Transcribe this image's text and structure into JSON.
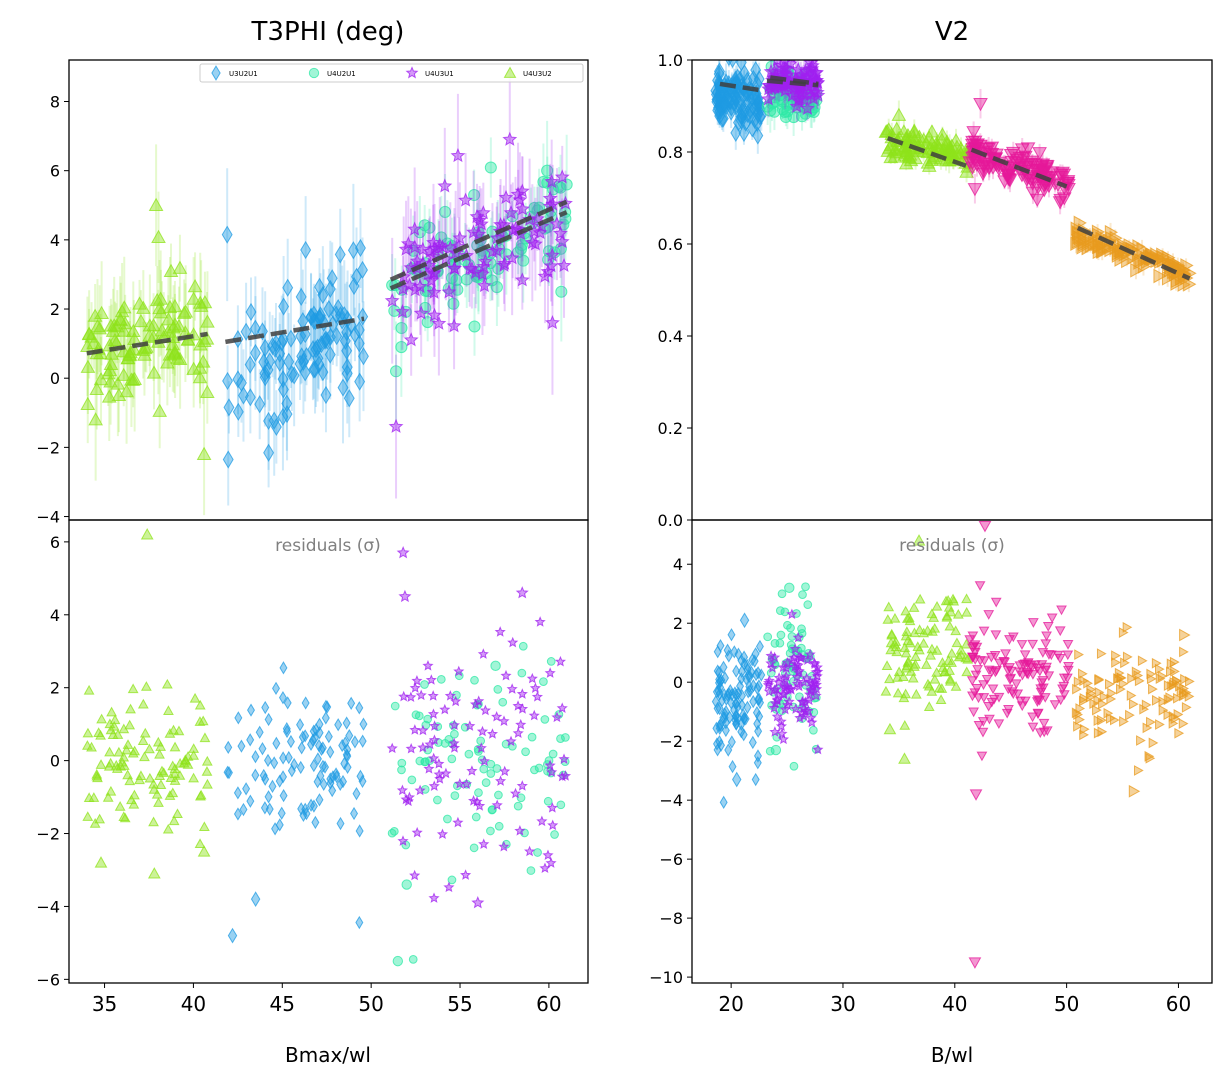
{
  "chart_data": [
    {
      "type": "scatter",
      "panel": "left",
      "title": "T3PHI (deg)",
      "xlabel": "Bmax/wl",
      "residuals_label": "residuals (σ)",
      "xlim": [
        33,
        62.2
      ],
      "xticks": [
        35,
        40,
        45,
        50,
        55,
        60
      ],
      "top": {
        "ylim": [
          -4.1,
          9.2
        ],
        "yticks": [
          -4,
          -2,
          0,
          2,
          4,
          6,
          8
        ]
      },
      "bottom": {
        "ylim": [
          -6.1,
          6.6
        ],
        "yticks": [
          -6,
          -4,
          -2,
          0,
          2,
          4,
          6
        ]
      },
      "legend": {
        "position": "top-right"
      },
      "series": [
        {
          "name": "U3U2U1",
          "marker": "diamond",
          "color": "#1f9be3",
          "x_range": [
            41.8,
            49.6
          ],
          "y_center_at_start": 0.1,
          "y_center_at_end": 1.7,
          "y_spread": 0.9,
          "errorbar": 1.2,
          "model": {
            "x": [
              41.8,
              49.6
            ],
            "y": [
              1.05,
              1.72
            ]
          },
          "residual_spread": 1.1,
          "n_points": 110,
          "highlights": [
            [
              41.9,
              4.15
            ],
            [
              49.0,
              3.7
            ]
          ],
          "residual_highlights": [
            [
              42.2,
              -4.8
            ],
            [
              43.5,
              -3.8
            ]
          ]
        },
        {
          "name": "U4U2U1",
          "marker": "circle",
          "color": "#2ee8a6",
          "x_range": [
            51.1,
            61.0
          ],
          "y_center_at_start": 2.6,
          "y_center_at_end": 4.8,
          "y_spread": 0.8,
          "errorbar": 0.9,
          "model": {
            "x": [
              51.1,
              61.0
            ],
            "y": [
              2.6,
              4.8
            ]
          },
          "residual_spread": 1.3,
          "n_points": 90,
          "highlights": [
            [
              51.4,
              0.2
            ],
            [
              51.7,
              0.9
            ],
            [
              60.7,
              2.5
            ],
            [
              61.0,
              5.6
            ],
            [
              59.9,
              6.0
            ]
          ],
          "residual_highlights": [
            [
              51.5,
              -5.5
            ],
            [
              52.0,
              -3.4
            ],
            [
              57.0,
              2.6
            ]
          ]
        },
        {
          "name": "U4U3U1",
          "marker": "star",
          "color": "#a020f0",
          "x_range": [
            51.1,
            61.0
          ],
          "y_center_at_start": 2.9,
          "y_center_at_end": 4.9,
          "y_spread": 1.0,
          "errorbar": 1.3,
          "model": {
            "x": [
              51.1,
              61.0
            ],
            "y": [
              2.85,
              5.1
            ]
          },
          "residual_spread": 1.5,
          "n_points": 100,
          "highlights": [
            [
              51.4,
              -1.4
            ],
            [
              60.2,
              1.6
            ],
            [
              57.8,
              6.9
            ]
          ],
          "residual_highlights": [
            [
              51.8,
              5.7
            ],
            [
              51.9,
              4.5
            ],
            [
              58.5,
              4.6
            ],
            [
              56.0,
              -3.9
            ]
          ]
        },
        {
          "name": "U4U3U2",
          "marker": "triangle-up",
          "color": "#8fe31b",
          "x_range": [
            34.0,
            40.8
          ],
          "y_center_at_start": 0.8,
          "y_center_at_end": 1.5,
          "y_spread": 0.9,
          "errorbar": 1.1,
          "model": {
            "x": [
              34.0,
              40.8
            ],
            "y": [
              0.72,
              1.28
            ]
          },
          "residual_spread": 1.0,
          "n_points": 110,
          "highlights": [
            [
              37.9,
              5.0
            ],
            [
              40.6,
              -2.2
            ],
            [
              34.5,
              -1.2
            ]
          ],
          "residual_highlights": [
            [
              37.4,
              6.2
            ],
            [
              34.8,
              -2.8
            ],
            [
              37.8,
              -3.1
            ],
            [
              40.6,
              -2.5
            ]
          ]
        }
      ]
    },
    {
      "type": "scatter",
      "panel": "right",
      "title": "V2",
      "xlabel": "B/wl",
      "residuals_label": "residuals (σ)",
      "xlim": [
        16.5,
        63
      ],
      "xticks": [
        20,
        30,
        40,
        50,
        60
      ],
      "top": {
        "ylim": [
          0.0,
          1.0
        ],
        "yticks": [
          0.0,
          0.2,
          0.4,
          0.6,
          0.8,
          1.0
        ]
      },
      "bottom": {
        "ylim": [
          -10.2,
          5.5
        ],
        "yticks": [
          -10,
          -8,
          -6,
          -4,
          -2,
          0,
          2,
          4
        ]
      },
      "series": [
        {
          "name": "blue-diamond",
          "marker": "diamond",
          "color": "#1f9be3",
          "x_range": [
            18.6,
            22.8
          ],
          "y_center_at_start": 0.925,
          "y_center_at_end": 0.905,
          "y_spread": 0.028,
          "errorbar": 0.03,
          "model": {
            "x": [
              19.0,
              23.0
            ],
            "y": [
              0.948,
              0.933
            ]
          },
          "residual_spread": 0.9,
          "residual_offset": -0.6,
          "n_points": 110,
          "highlights": [],
          "residual_highlights": [
            [
              20.5,
              -3.3
            ],
            [
              21.2,
              2.1
            ]
          ]
        },
        {
          "name": "green-circle",
          "marker": "circle",
          "color": "#2ee8a6",
          "x_range": [
            23.2,
            27.8
          ],
          "y_center_at_start": 0.93,
          "y_center_at_end": 0.92,
          "y_spread": 0.03,
          "errorbar": 0.03,
          "model": {
            "x": [
              23.2,
              27.8
            ],
            "y": [
              0.955,
              0.945
            ]
          },
          "residual_spread": 1.2,
          "residual_offset": 0.3,
          "n_points": 70,
          "highlights": [
            [
              23.5,
              0.89
            ]
          ],
          "residual_highlights": [
            [
              25.2,
              3.2
            ],
            [
              24.0,
              -2.3
            ]
          ]
        },
        {
          "name": "purple-star",
          "marker": "star",
          "color": "#a020f0",
          "x_range": [
            23.2,
            27.8
          ],
          "y_center_at_start": 0.96,
          "y_center_at_end": 0.945,
          "y_spread": 0.025,
          "errorbar": 0.03,
          "model": {
            "x": [
              23.5,
              27.8
            ],
            "y": [
              0.962,
              0.948
            ]
          },
          "residual_spread": 0.7,
          "residual_offset": -0.1,
          "n_points": 90,
          "highlights": [],
          "residual_highlights": []
        },
        {
          "name": "green-triangle-up",
          "marker": "triangle-up",
          "color": "#8fe31b",
          "x_range": [
            33.8,
            41.2
          ],
          "y_center_at_start": 0.82,
          "y_center_at_end": 0.79,
          "y_spread": 0.018,
          "errorbar": 0.02,
          "model": {
            "x": [
              34.0,
              41.0
            ],
            "y": [
              0.83,
              0.77
            ]
          },
          "residual_spread": 1.0,
          "residual_offset": 1.2,
          "n_points": 100,
          "highlights": [
            [
              35.0,
              0.88
            ]
          ],
          "residual_highlights": [
            [
              36.8,
              4.8
            ],
            [
              35.5,
              -2.6
            ],
            [
              34.2,
              -1.6
            ]
          ]
        },
        {
          "name": "magenta-triangle-down",
          "marker": "triangle-down",
          "color": "#e5189a",
          "x_range": [
            41.2,
            50.3
          ],
          "y_center_at_start": 0.8,
          "y_center_at_end": 0.73,
          "y_spread": 0.02,
          "errorbar": 0.02,
          "model": {
            "x": [
              41.5,
              50.0
            ],
            "y": [
              0.805,
              0.725
            ]
          },
          "residual_spread": 0.9,
          "residual_offset": 0.4,
          "n_points": 130,
          "highlights": [
            [
              41.8,
              0.72
            ],
            [
              42.3,
              0.905
            ]
          ],
          "residual_highlights": [
            [
              42.7,
              5.3
            ],
            [
              41.8,
              -9.5
            ],
            [
              41.9,
              -3.8
            ]
          ]
        },
        {
          "name": "orange-triangle-right",
          "marker": "triangle-right",
          "color": "#e89b1f",
          "x_range": [
            50.8,
            61.0
          ],
          "y_center_at_start": 0.62,
          "y_center_at_end": 0.535,
          "y_spread": 0.012,
          "errorbar": 0.015,
          "model": {
            "x": [
              51.0,
              61.0
            ],
            "y": [
              0.635,
              0.525
            ]
          },
          "residual_spread": 0.9,
          "residual_offset": -0.4,
          "n_points": 110,
          "highlights": [],
          "residual_highlights": [
            [
              60.5,
              1.6
            ],
            [
              56.0,
              -3.7
            ]
          ]
        }
      ]
    }
  ]
}
